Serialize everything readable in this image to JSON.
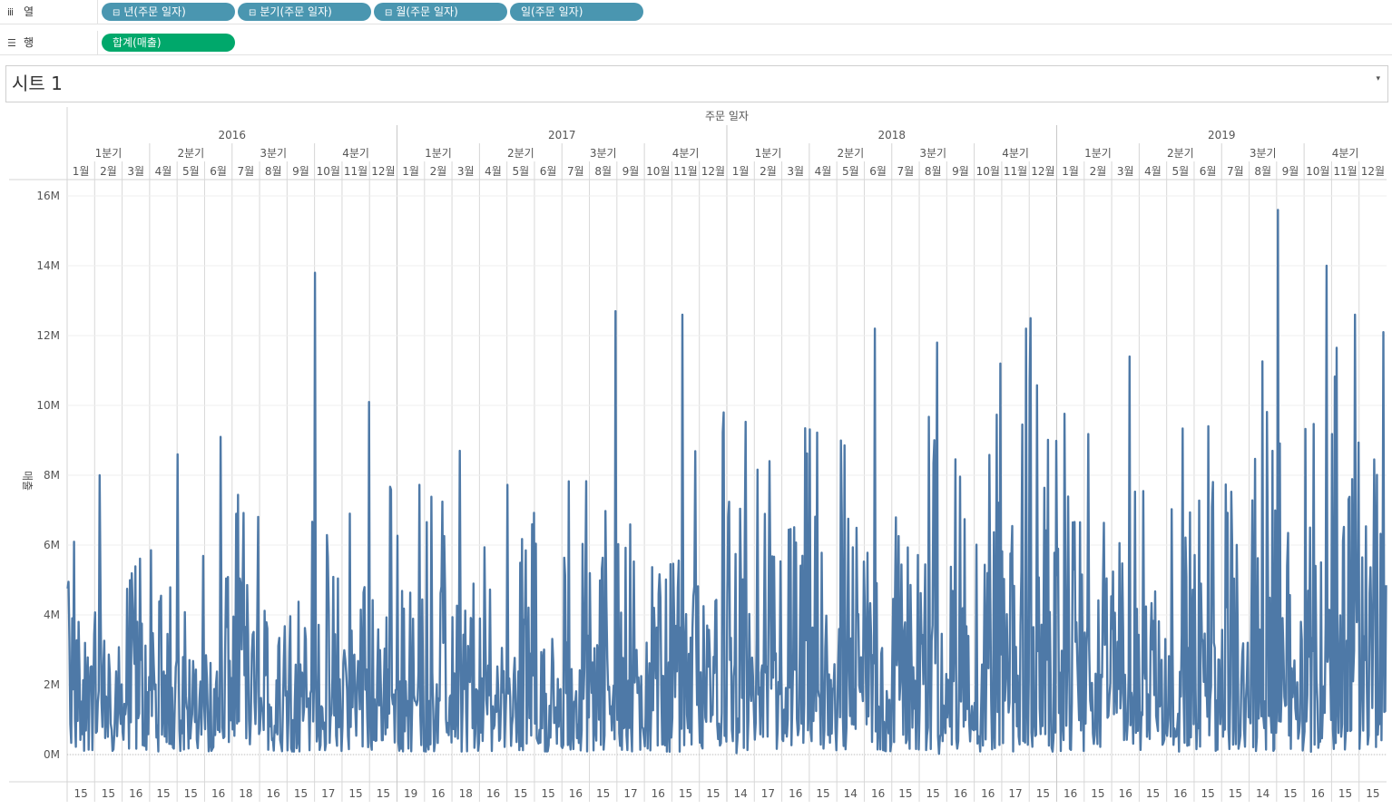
{
  "shelves": {
    "columns": {
      "label": "열",
      "icon": "columns-icon",
      "pills": [
        {
          "label": "년(주문 일자)",
          "expander": "⊟"
        },
        {
          "label": "분기(주문 일자)",
          "expander": "⊟"
        },
        {
          "label": "월(주문 일자)",
          "expander": "⊟"
        },
        {
          "label": "일(주문 일자)",
          "expander": ""
        }
      ]
    },
    "rows": {
      "label": "행",
      "icon": "rows-icon",
      "pills": [
        {
          "label": "합계(매출)"
        }
      ]
    }
  },
  "sheet": {
    "title": "시트 1",
    "dropdown": "▾"
  },
  "colors": {
    "line": "#4e79a7",
    "dimension_pill": "#4a96b0",
    "measure_pill": "#00a86b"
  },
  "chart_data": {
    "type": "line",
    "title": "",
    "xlabel": "주문 일자",
    "ylabel": "매출",
    "ylim": [
      0,
      16500000
    ],
    "yticks": [
      {
        "value": 0,
        "label": "0M"
      },
      {
        "value": 2000000,
        "label": "2M"
      },
      {
        "value": 4000000,
        "label": "4M"
      },
      {
        "value": 6000000,
        "label": "6M"
      },
      {
        "value": 8000000,
        "label": "8M"
      },
      {
        "value": 10000000,
        "label": "10M"
      },
      {
        "value": 12000000,
        "label": "12M"
      },
      {
        "value": 14000000,
        "label": "14M"
      },
      {
        "value": 16000000,
        "label": "16M"
      }
    ],
    "grid": true,
    "years": [
      "2016",
      "2017",
      "2018",
      "2019"
    ],
    "quarter_labels": [
      "1분기",
      "2분기",
      "3분기",
      "4분기"
    ],
    "month_labels": [
      "1월",
      "2월",
      "3월",
      "4월",
      "5월",
      "6월",
      "7월",
      "8월",
      "9월",
      "10월",
      "11월",
      "12월"
    ],
    "day_labels": [
      [
        "15",
        "15",
        "16",
        "15",
        "15",
        "16",
        "18",
        "16",
        "15",
        "17",
        "15",
        "15"
      ],
      [
        "19",
        "16",
        "18",
        "16",
        "15",
        "15",
        "16",
        "15",
        "17",
        "16",
        "15",
        "15"
      ],
      [
        "14",
        "17",
        "16",
        "15",
        "14",
        "16",
        "15",
        "15",
        "16",
        "16",
        "17",
        "15"
      ],
      [
        "16",
        "15",
        "16",
        "15",
        "16",
        "15",
        "15",
        "14",
        "15",
        "16",
        "15",
        "15"
      ]
    ],
    "peaks": [
      {
        "year": 2016,
        "month": 1,
        "value": 3200000
      },
      {
        "year": 2016,
        "month": 2,
        "value": 8000000
      },
      {
        "year": 2016,
        "month": 5,
        "value": 8600000
      },
      {
        "year": 2016,
        "month": 6,
        "value": 9100000
      },
      {
        "year": 2016,
        "month": 10,
        "value": 13800000
      },
      {
        "year": 2016,
        "month": 11,
        "value": 10100000
      },
      {
        "year": 2017,
        "month": 3,
        "value": 8700000
      },
      {
        "year": 2017,
        "month": 8,
        "value": 12700000
      },
      {
        "year": 2017,
        "month": 11,
        "value": 12600000
      },
      {
        "year": 2017,
        "month": 12,
        "value": 9800000
      },
      {
        "year": 2018,
        "month": 6,
        "value": 12200000
      },
      {
        "year": 2018,
        "month": 8,
        "value": 11800000
      },
      {
        "year": 2018,
        "month": 10,
        "value": 11200000
      },
      {
        "year": 2018,
        "month": 11,
        "value": 12200000
      },
      {
        "year": 2018,
        "month": 12,
        "value": 12500000
      },
      {
        "year": 2019,
        "month": 3,
        "value": 11400000
      },
      {
        "year": 2019,
        "month": 9,
        "value": 15600000
      },
      {
        "year": 2019,
        "month": 10,
        "value": 14000000
      },
      {
        "year": 2019,
        "month": 11,
        "value": 12600000
      },
      {
        "year": 2019,
        "month": 12,
        "value": 12100000
      }
    ]
  }
}
